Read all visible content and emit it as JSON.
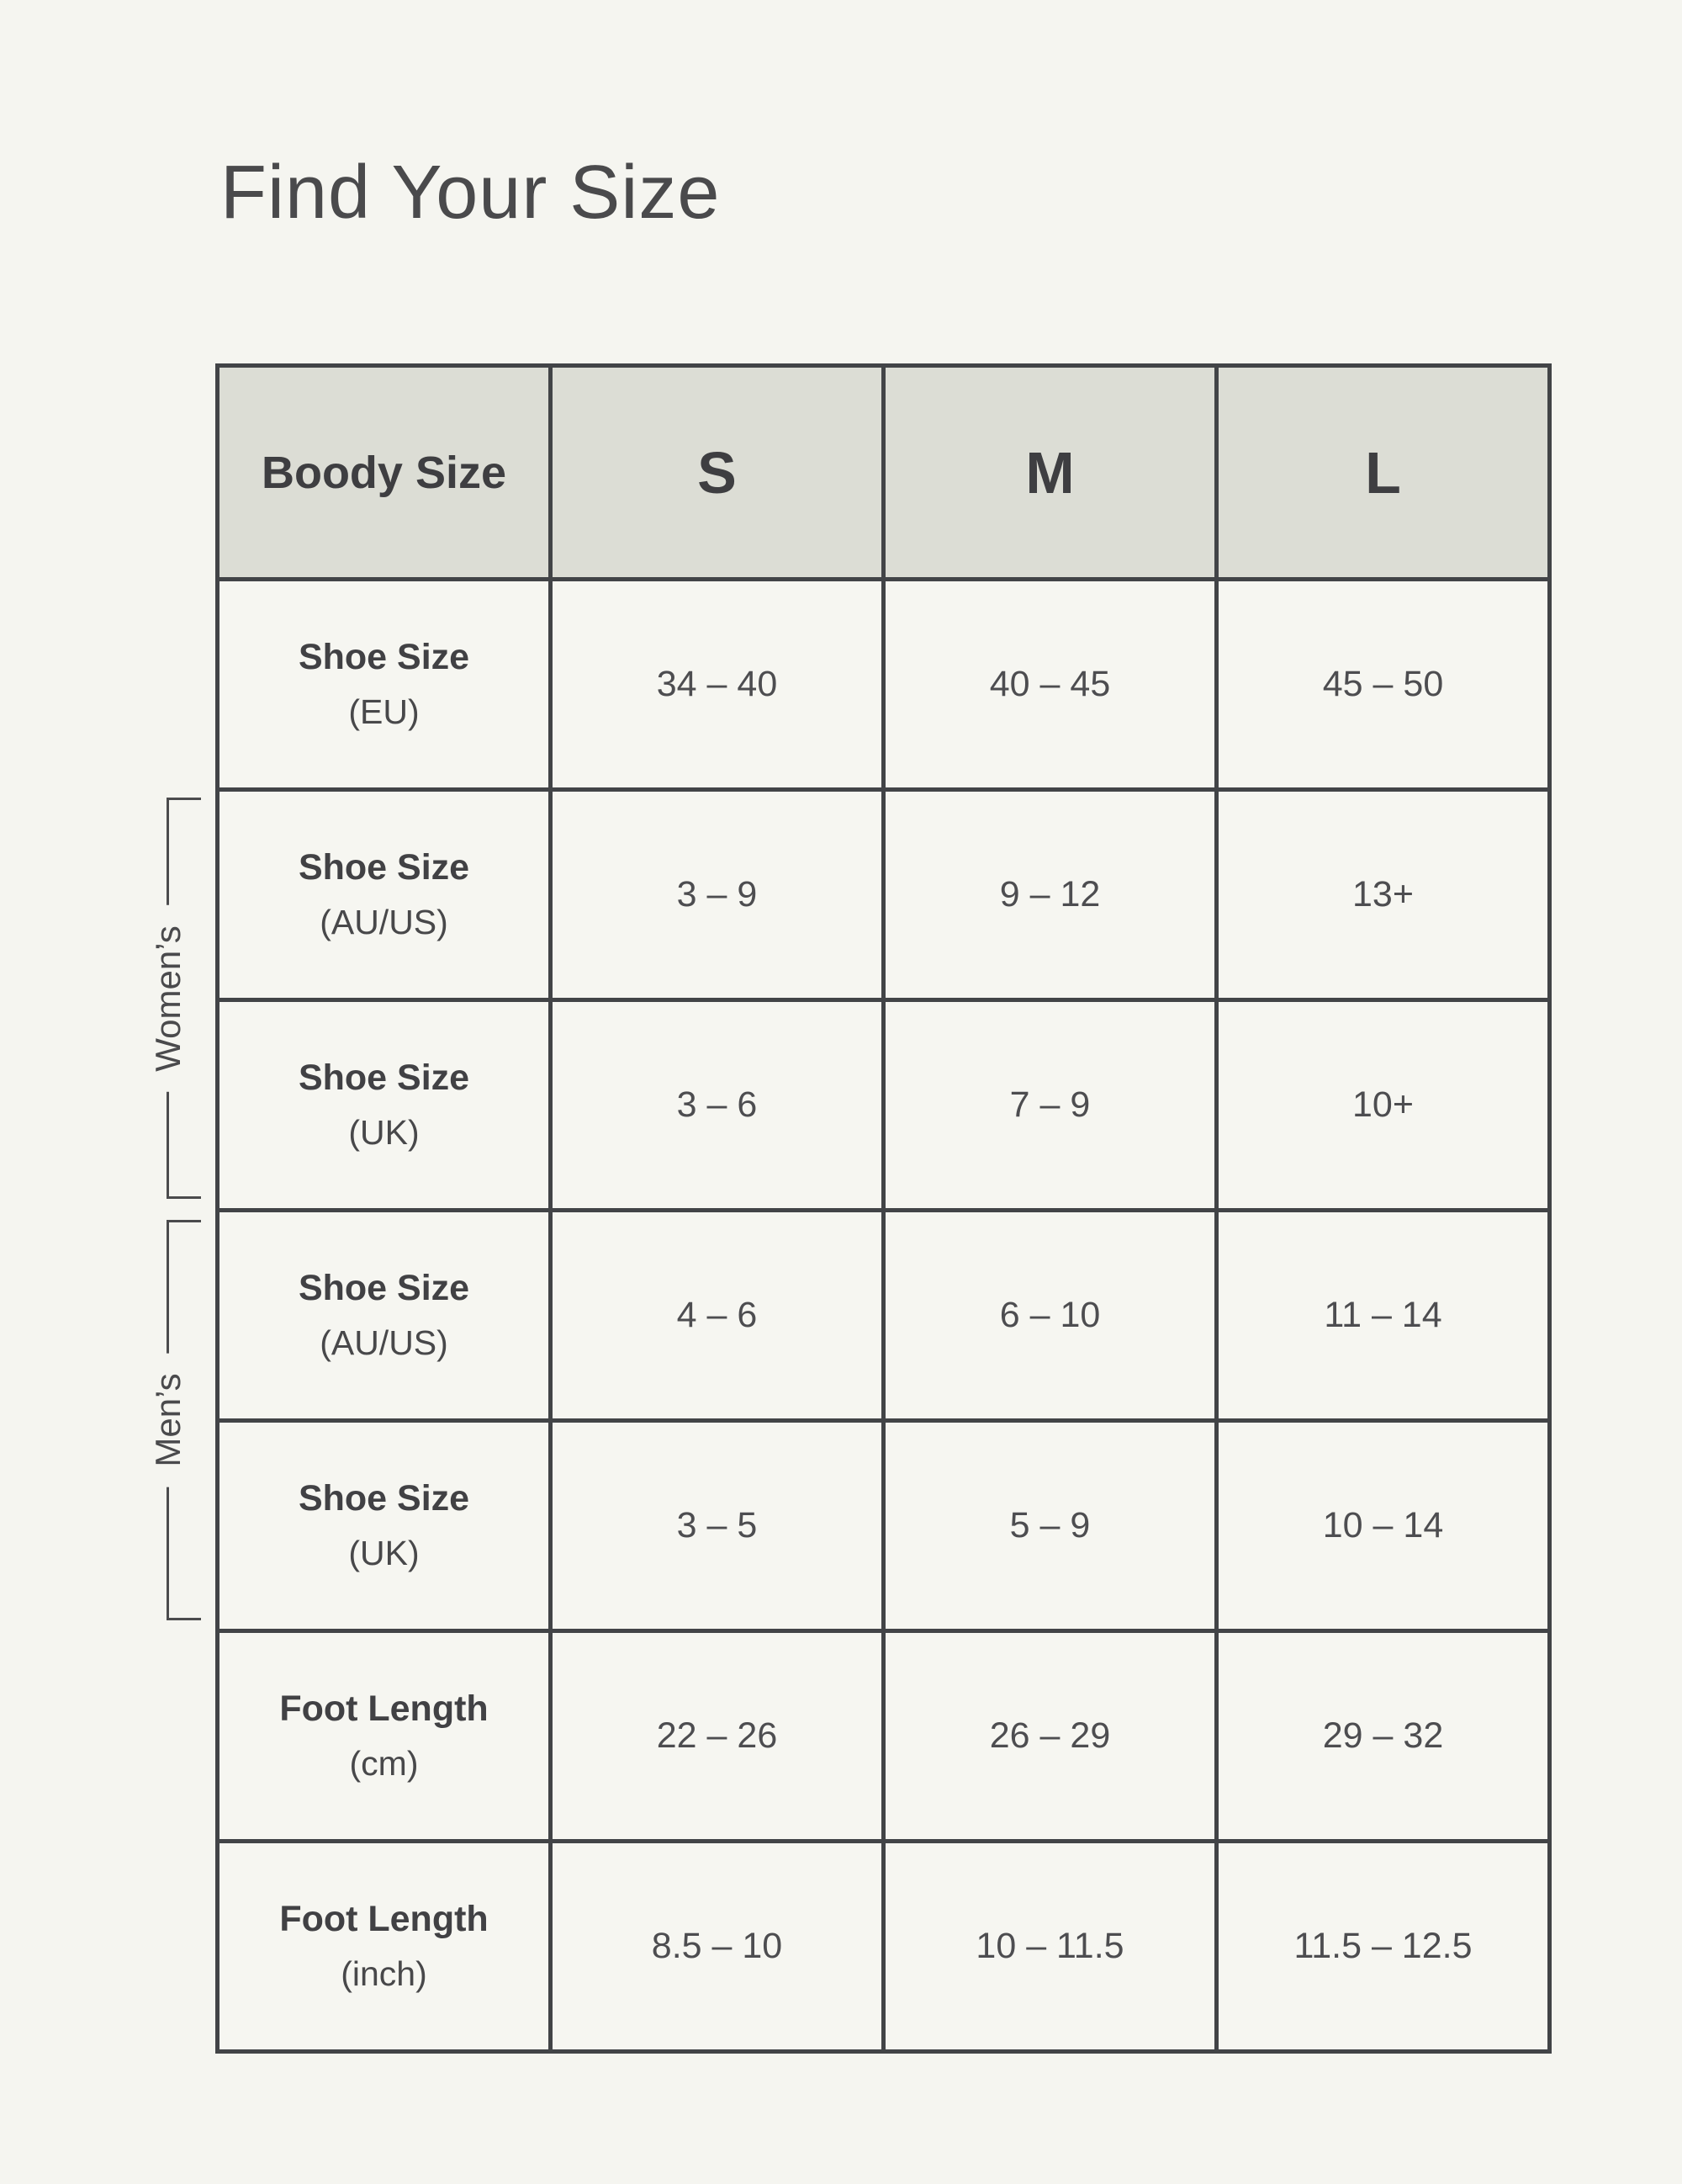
{
  "page": {
    "title": "Find Your Size"
  },
  "colors": {
    "page_bg": "#f5f5f0",
    "header_bg": "#dcddd5",
    "cell_bg": "#f6f6f1",
    "border": "#424447",
    "text": "#48484a"
  },
  "table": {
    "header": {
      "label": "Boody Size",
      "sizes": [
        "S",
        "M",
        "L"
      ]
    },
    "groups": {
      "womens": "Women’s",
      "mens": "Men’s"
    },
    "rows": [
      {
        "label": "Shoe Size",
        "sub": "(EU)",
        "group": "",
        "values": [
          "34 – 40",
          "40 – 45",
          "45 – 50"
        ]
      },
      {
        "label": "Shoe Size",
        "sub": "(AU/US)",
        "group": "womens",
        "values": [
          "3 – 9",
          "9 – 12",
          "13+"
        ]
      },
      {
        "label": "Shoe Size",
        "sub": "(UK)",
        "group": "womens",
        "values": [
          "3 – 6",
          "7 – 9",
          "10+"
        ]
      },
      {
        "label": "Shoe Size",
        "sub": "(AU/US)",
        "group": "mens",
        "values": [
          "4 – 6",
          "6 – 10",
          "11 – 14"
        ]
      },
      {
        "label": "Shoe Size",
        "sub": "(UK)",
        "group": "mens",
        "values": [
          "3 – 5",
          "5 – 9",
          "10 – 14"
        ]
      },
      {
        "label": "Foot Length",
        "sub": "(cm)",
        "group": "",
        "values": [
          "22 – 26",
          "26 – 29",
          "29 – 32"
        ]
      },
      {
        "label": "Foot Length",
        "sub": "(inch)",
        "group": "",
        "values": [
          "8.5 – 10",
          "10 – 11.5",
          "11.5 – 12.5"
        ]
      }
    ]
  }
}
